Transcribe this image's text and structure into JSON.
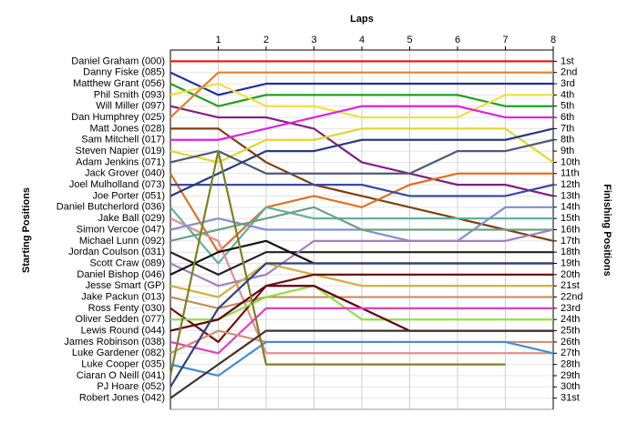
{
  "chart_data": {
    "type": "lap",
    "x_label": "Laps",
    "y_label": "Starting Positions",
    "y2_label": "Finishing Positions",
    "x": [
      0,
      1,
      2,
      3,
      4,
      5,
      6,
      7,
      8
    ],
    "xlim": [
      0,
      8
    ],
    "xticks": [
      1,
      2,
      3,
      4,
      5,
      6,
      7,
      8
    ],
    "ylim": [
      32,
      0
    ],
    "grid": true,
    "yticks": [
      {
        "value": 1,
        "label": "Daniel Graham (000)"
      },
      {
        "value": 2,
        "label": "Danny Fiske (085)"
      },
      {
        "value": 3,
        "label": "Matthew Grant (056)"
      },
      {
        "value": 4,
        "label": "Phil Smith (093)"
      },
      {
        "value": 5,
        "label": "Will Miller (097)"
      },
      {
        "value": 6,
        "label": "Dan Humphrey (025)"
      },
      {
        "value": 7,
        "label": "Matt Jones (028)"
      },
      {
        "value": 8,
        "label": "Sam Mitchell (017)"
      },
      {
        "value": 9,
        "label": "Steven Napier (019)"
      },
      {
        "value": 10,
        "label": "Adam Jenkins (071)"
      },
      {
        "value": 11,
        "label": "Jack Grover (040)"
      },
      {
        "value": 12,
        "label": "Joel Mulholland (073)"
      },
      {
        "value": 13,
        "label": "Joe Porter (051)"
      },
      {
        "value": 14,
        "label": "Daniel Butcherlord (036)"
      },
      {
        "value": 15,
        "label": "Jake Ball (029)"
      },
      {
        "value": 16,
        "label": "Simon Vercoe (047)"
      },
      {
        "value": 17,
        "label": "Michael Lunn (092)"
      },
      {
        "value": 18,
        "label": "Jordan Coulson (031)"
      },
      {
        "value": 19,
        "label": "Scott Craw (089)"
      },
      {
        "value": 20,
        "label": "Daniel Bishop (046)"
      },
      {
        "value": 21,
        "label": "Jesse Smart (GP)"
      },
      {
        "value": 22,
        "label": "Jake Packun (013)"
      },
      {
        "value": 23,
        "label": "Ross Fenty (030)"
      },
      {
        "value": 24,
        "label": "Oliver Sedden (077)"
      },
      {
        "value": 25,
        "label": "Lewis Round (044)"
      },
      {
        "value": 26,
        "label": "James Robinson (038)"
      },
      {
        "value": 27,
        "label": "Luke Gardener (082)"
      },
      {
        "value": 28,
        "label": "Luke Cooper (035)"
      },
      {
        "value": 29,
        "label": "Ciaran O Neill (041)"
      },
      {
        "value": 30,
        "label": "PJ Hoare (052)"
      },
      {
        "value": 31,
        "label": "Robert Jones (042)"
      }
    ],
    "y2ticks": [
      {
        "value": 1,
        "label": "1st"
      },
      {
        "value": 2,
        "label": "2nd"
      },
      {
        "value": 3,
        "label": "3rd"
      },
      {
        "value": 4,
        "label": "4th"
      },
      {
        "value": 5,
        "label": "5th"
      },
      {
        "value": 6,
        "label": "6th"
      },
      {
        "value": 7,
        "label": "7th"
      },
      {
        "value": 8,
        "label": "8th"
      },
      {
        "value": 9,
        "label": "9th"
      },
      {
        "value": 10,
        "label": "10th"
      },
      {
        "value": 11,
        "label": "11th"
      },
      {
        "value": 12,
        "label": "12th"
      },
      {
        "value": 13,
        "label": "13th"
      },
      {
        "value": 14,
        "label": "14th"
      },
      {
        "value": 15,
        "label": "15th"
      },
      {
        "value": 16,
        "label": "16th"
      },
      {
        "value": 17,
        "label": "17th"
      },
      {
        "value": 18,
        "label": "18th"
      },
      {
        "value": 19,
        "label": "19th"
      },
      {
        "value": 20,
        "label": "20th"
      },
      {
        "value": 21,
        "label": "21st"
      },
      {
        "value": 22,
        "label": "22nd"
      },
      {
        "value": 23,
        "label": "23rd"
      },
      {
        "value": 24,
        "label": "24th"
      },
      {
        "value": 25,
        "label": "25th"
      },
      {
        "value": 26,
        "label": "26th"
      },
      {
        "value": 27,
        "label": "27th"
      },
      {
        "value": 28,
        "label": "28th"
      },
      {
        "value": 29,
        "label": "29th"
      },
      {
        "value": 30,
        "label": "30th"
      },
      {
        "value": 31,
        "label": "31st"
      }
    ],
    "series": [
      {
        "color": "#e02020",
        "values": [
          1,
          1,
          1,
          1,
          1,
          1,
          1,
          1,
          1
        ]
      },
      {
        "color": "#1f2f9f",
        "values": [
          2,
          4,
          3,
          3,
          3,
          3,
          3,
          3,
          3
        ]
      },
      {
        "color": "#20a020",
        "values": [
          3,
          5,
          4,
          4,
          4,
          4,
          4,
          5,
          5
        ]
      },
      {
        "color": "#f0e040",
        "values": [
          4,
          3,
          5,
          5,
          6,
          6,
          6,
          4,
          4
        ]
      },
      {
        "color": "#802080",
        "values": [
          5,
          6,
          6,
          7,
          10,
          11,
          12,
          12,
          13
        ]
      },
      {
        "color": "#e08030",
        "values": [
          6,
          2,
          2,
          2,
          2,
          2,
          2,
          2,
          2
        ]
      },
      {
        "color": "#804010",
        "values": [
          7,
          7,
          10,
          12,
          13,
          14,
          15,
          16,
          17
        ]
      },
      {
        "color": "#e020e0",
        "values": [
          8,
          8,
          7,
          6,
          5,
          5,
          5,
          6,
          6
        ]
      },
      {
        "color": "#e0d830",
        "values": [
          9,
          10,
          8,
          8,
          7,
          7,
          7,
          7,
          10
        ]
      },
      {
        "color": "#505878",
        "values": [
          10,
          9,
          11,
          11,
          11,
          11,
          9,
          9,
          8
        ]
      },
      {
        "color": "#e07020",
        "values": [
          11,
          18,
          14,
          13,
          14,
          12,
          11,
          11,
          11
        ]
      },
      {
        "color": "#3a4aa0",
        "values": [
          12,
          12,
          12,
          12,
          12,
          13,
          13,
          13,
          12
        ]
      },
      {
        "color": "#283a80",
        "values": [
          13,
          11,
          9,
          9,
          8,
          8,
          8,
          8,
          7
        ]
      },
      {
        "color": "#60b0a0",
        "values": [
          14,
          19,
          14,
          15,
          15,
          15,
          15,
          15,
          15
        ]
      },
      {
        "color": "#e09090",
        "values": [
          15,
          17,
          27,
          27,
          27,
          27,
          27,
          27,
          27
        ]
      },
      {
        "color": "#8090d0",
        "values": [
          16,
          15,
          16,
          16,
          16,
          17,
          17,
          14,
          14
        ]
      },
      {
        "color": "#6aa080",
        "values": [
          17,
          16,
          15,
          14,
          16,
          16,
          16,
          16,
          16
        ]
      },
      {
        "color": "#202020",
        "values": [
          18,
          20,
          18,
          18,
          18,
          18,
          18,
          18,
          18
        ]
      },
      {
        "color": "#a080c0",
        "values": [
          19,
          21,
          20,
          17,
          17,
          17,
          17,
          17,
          16
        ]
      },
      {
        "color": "#101010",
        "values": [
          20,
          18,
          17,
          19,
          19,
          19,
          19,
          19,
          19
        ]
      },
      {
        "color": "#d0b040",
        "values": [
          21,
          22,
          19,
          20,
          21,
          21,
          21,
          21,
          21
        ]
      },
      {
        "color": "#c09060",
        "values": [
          22,
          23,
          22,
          22,
          22,
          22,
          22,
          22,
          22
        ]
      },
      {
        "color": "#701010",
        "values": [
          23,
          26,
          21,
          20,
          20,
          20,
          20,
          20,
          20
        ]
      },
      {
        "color": "#90e040",
        "values": [
          24,
          24,
          22,
          21,
          24,
          24,
          24,
          24,
          24
        ]
      },
      {
        "color": "#600010",
        "values": [
          25,
          24,
          21,
          21,
          23,
          25,
          25,
          25,
          25
        ]
      },
      {
        "color": "#e040c0",
        "values": [
          26,
          27,
          23,
          23,
          23,
          23,
          23,
          23,
          23
        ]
      },
      {
        "color": "#d09070",
        "values": [
          27,
          25,
          26,
          26,
          26,
          26,
          26,
          26,
          26
        ]
      },
      {
        "color": "#4090d0",
        "values": [
          28,
          29,
          26,
          26,
          26,
          26,
          26,
          26,
          27
        ]
      },
      {
        "color": "#808020",
        "values": [
          29,
          9,
          28,
          28,
          28,
          28,
          28,
          28,
          null
        ]
      },
      {
        "color": "#304080",
        "values": [
          30,
          23,
          19,
          19,
          19,
          19,
          19,
          19,
          19
        ]
      },
      {
        "color": "#403030",
        "values": [
          31,
          28,
          25,
          25,
          25,
          25,
          25,
          25,
          25
        ]
      }
    ]
  }
}
